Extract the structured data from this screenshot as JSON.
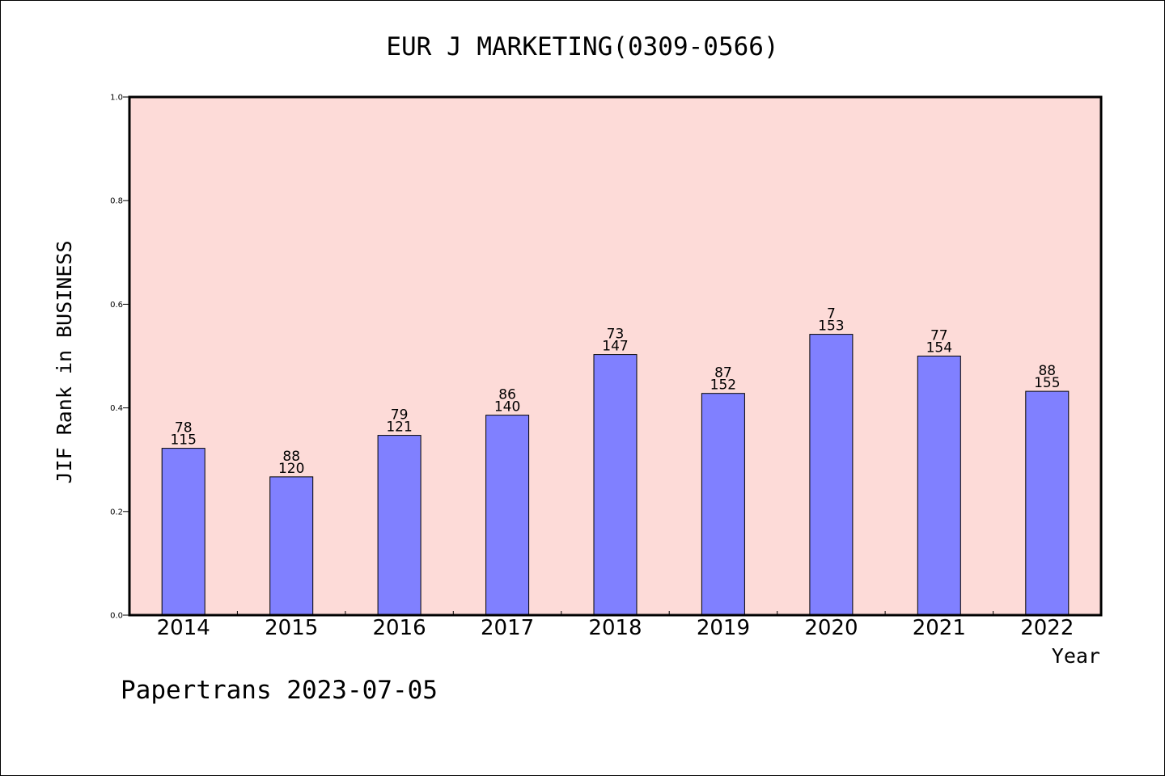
{
  "chart_data": {
    "type": "bar",
    "title": "EUR J MARKETING(0309-0566)",
    "xlabel": "Year",
    "ylabel": "JIF Rank in BUSINESS",
    "categories": [
      "2014",
      "2015",
      "2016",
      "2017",
      "2018",
      "2019",
      "2020",
      "2021",
      "2022"
    ],
    "values": [
      0.322,
      0.267,
      0.347,
      0.386,
      0.503,
      0.428,
      0.542,
      0.5,
      0.432
    ],
    "rank": [
      "78",
      "88",
      "79",
      "86",
      "73",
      "87",
      "7",
      "77",
      "88"
    ],
    "total": [
      "115",
      "120",
      "121",
      "140",
      "147",
      "152",
      "153",
      "154",
      "155"
    ],
    "ylim": [
      0,
      1
    ],
    "yticks": [
      "0.0",
      "0.2",
      "0.4",
      "0.6",
      "0.8",
      "1.0"
    ],
    "grid": false,
    "colors": {
      "plot_background": "#fddbd8",
      "bar_fill": "#8080ff",
      "bar_edge": "#000000"
    }
  },
  "footer": {
    "watermark": "Papertrans 2023-07-05"
  }
}
